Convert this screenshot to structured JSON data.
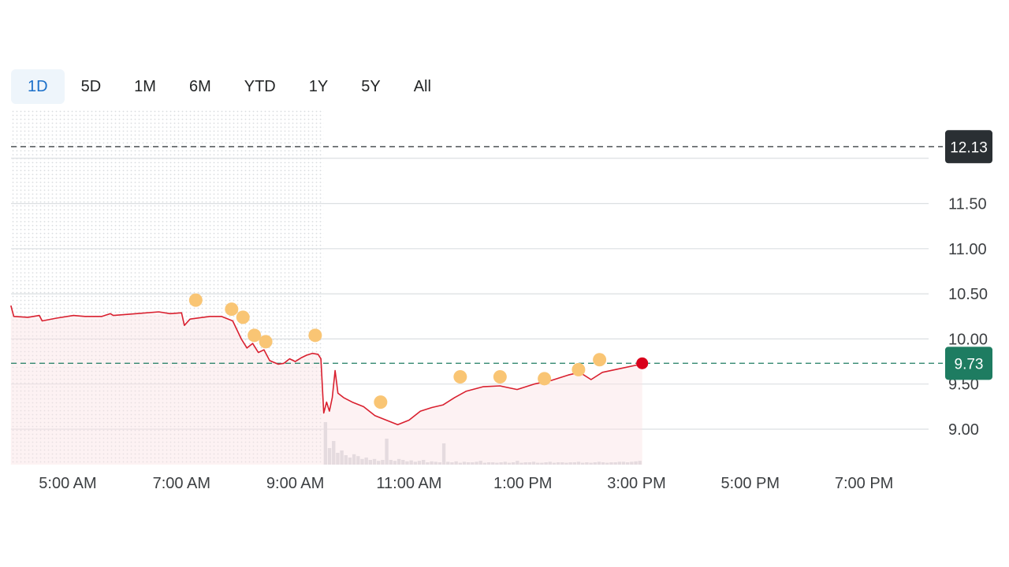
{
  "range_tabs": [
    {
      "label": "1D",
      "active": true
    },
    {
      "label": "5D",
      "active": false
    },
    {
      "label": "1M",
      "active": false
    },
    {
      "label": "6M",
      "active": false
    },
    {
      "label": "YTD",
      "active": false
    },
    {
      "label": "1Y",
      "active": false
    },
    {
      "label": "5Y",
      "active": false
    },
    {
      "label": "All",
      "active": false
    }
  ],
  "colors": {
    "price_line": "#d9202f",
    "last_point": "#d9001b",
    "event_marker": "#f9c574",
    "prev_close_badge": "#2a2f33",
    "current_badge": "#1e7c61",
    "current_line": "#2e8b6e",
    "active_tab_text": "#1a6fc9",
    "active_tab_bg": "#eef5fb"
  },
  "chart_data": {
    "type": "line",
    "title": "",
    "xlabel": "",
    "ylabel": "",
    "x_ticks": [
      "5:00 AM",
      "7:00 AM",
      "9:00 AM",
      "11:00 AM",
      "1:00 PM",
      "3:00 PM",
      "5:00 PM",
      "7:00 PM"
    ],
    "y_ticks": [
      "9.00",
      "9.50",
      "10.00",
      "10.50",
      "11.00",
      "11.50"
    ],
    "ylim": [
      8.6,
      12.3
    ],
    "x_range_hours": [
      4.0,
      19.6
    ],
    "regular_session_start_hour": 9.5,
    "grid": "horizontal",
    "reference_lines": [
      {
        "label": "12.13",
        "value": 12.13,
        "style": "dashed",
        "color": "#2a2f33"
      },
      {
        "label": "9.73",
        "value": 9.73,
        "style": "dashed",
        "color": "#1e7c61"
      }
    ],
    "series": [
      {
        "points": [
          [
            4.0,
            10.37
          ],
          [
            4.05,
            10.25
          ],
          [
            4.3,
            10.24
          ],
          [
            4.5,
            10.26
          ],
          [
            4.55,
            10.2
          ],
          [
            4.8,
            10.23
          ],
          [
            5.1,
            10.26
          ],
          [
            5.3,
            10.25
          ],
          [
            5.6,
            10.25
          ],
          [
            5.75,
            10.28
          ],
          [
            5.8,
            10.26
          ],
          [
            6.2,
            10.28
          ],
          [
            6.6,
            10.3
          ],
          [
            6.8,
            10.28
          ],
          [
            7.0,
            10.29
          ],
          [
            7.05,
            10.15
          ],
          [
            7.15,
            10.22
          ],
          [
            7.5,
            10.25
          ],
          [
            7.7,
            10.25
          ],
          [
            7.9,
            10.2
          ],
          [
            8.05,
            10.0
          ],
          [
            8.15,
            9.9
          ],
          [
            8.25,
            9.95
          ],
          [
            8.35,
            9.85
          ],
          [
            8.45,
            9.88
          ],
          [
            8.55,
            9.76
          ],
          [
            8.7,
            9.72
          ],
          [
            8.8,
            9.73
          ],
          [
            8.9,
            9.78
          ],
          [
            9.0,
            9.75
          ],
          [
            9.1,
            9.79
          ],
          [
            9.2,
            9.82
          ],
          [
            9.3,
            9.84
          ],
          [
            9.4,
            9.83
          ],
          [
            9.45,
            9.78
          ],
          [
            9.5,
            9.18
          ],
          [
            9.55,
            9.3
          ],
          [
            9.6,
            9.2
          ],
          [
            9.65,
            9.35
          ],
          [
            9.7,
            9.65
          ],
          [
            9.75,
            9.4
          ],
          [
            9.85,
            9.35
          ],
          [
            10.0,
            9.3
          ],
          [
            10.2,
            9.25
          ],
          [
            10.4,
            9.15
          ],
          [
            10.6,
            9.1
          ],
          [
            10.8,
            9.05
          ],
          [
            11.0,
            9.1
          ],
          [
            11.2,
            9.2
          ],
          [
            11.4,
            9.24
          ],
          [
            11.6,
            9.27
          ],
          [
            11.8,
            9.35
          ],
          [
            12.0,
            9.42
          ],
          [
            12.3,
            9.47
          ],
          [
            12.6,
            9.48
          ],
          [
            12.9,
            9.44
          ],
          [
            13.2,
            9.5
          ],
          [
            13.5,
            9.54
          ],
          [
            13.8,
            9.6
          ],
          [
            14.0,
            9.63
          ],
          [
            14.2,
            9.55
          ],
          [
            14.4,
            9.63
          ],
          [
            14.7,
            9.67
          ],
          [
            15.0,
            9.71
          ],
          [
            15.1,
            9.73
          ]
        ]
      }
    ],
    "event_markers": [
      {
        "x": 7.25,
        "y": 10.43
      },
      {
        "x": 7.88,
        "y": 10.33
      },
      {
        "x": 8.08,
        "y": 10.24
      },
      {
        "x": 8.28,
        "y": 10.04
      },
      {
        "x": 8.48,
        "y": 9.97
      },
      {
        "x": 9.35,
        "y": 10.04
      },
      {
        "x": 10.5,
        "y": 9.3
      },
      {
        "x": 11.9,
        "y": 9.58
      },
      {
        "x": 12.6,
        "y": 9.58
      },
      {
        "x": 13.38,
        "y": 9.56
      },
      {
        "x": 13.98,
        "y": 9.66
      },
      {
        "x": 14.35,
        "y": 9.77
      }
    ],
    "last_point": {
      "x": 15.1,
      "y": 9.73
    },
    "volume_relative": [
      0.9,
      0.35,
      0.5,
      0.25,
      0.3,
      0.2,
      0.15,
      0.22,
      0.18,
      0.12,
      0.15,
      0.1,
      0.12,
      0.08,
      0.1,
      0.55,
      0.1,
      0.08,
      0.12,
      0.1,
      0.07,
      0.09,
      0.06,
      0.08,
      0.1,
      0.05,
      0.07,
      0.06,
      0.05,
      0.45,
      0.06,
      0.05,
      0.07,
      0.04,
      0.06,
      0.05,
      0.05,
      0.06,
      0.08,
      0.04,
      0.05,
      0.05,
      0.04,
      0.05,
      0.06,
      0.04,
      0.05,
      0.08,
      0.04,
      0.05,
      0.05,
      0.06,
      0.04,
      0.04,
      0.05,
      0.06,
      0.04,
      0.05,
      0.05,
      0.04,
      0.05,
      0.05,
      0.06,
      0.04,
      0.05,
      0.04,
      0.05,
      0.06,
      0.05,
      0.04,
      0.05,
      0.05,
      0.06,
      0.06,
      0.05,
      0.06,
      0.07,
      0.08
    ]
  }
}
